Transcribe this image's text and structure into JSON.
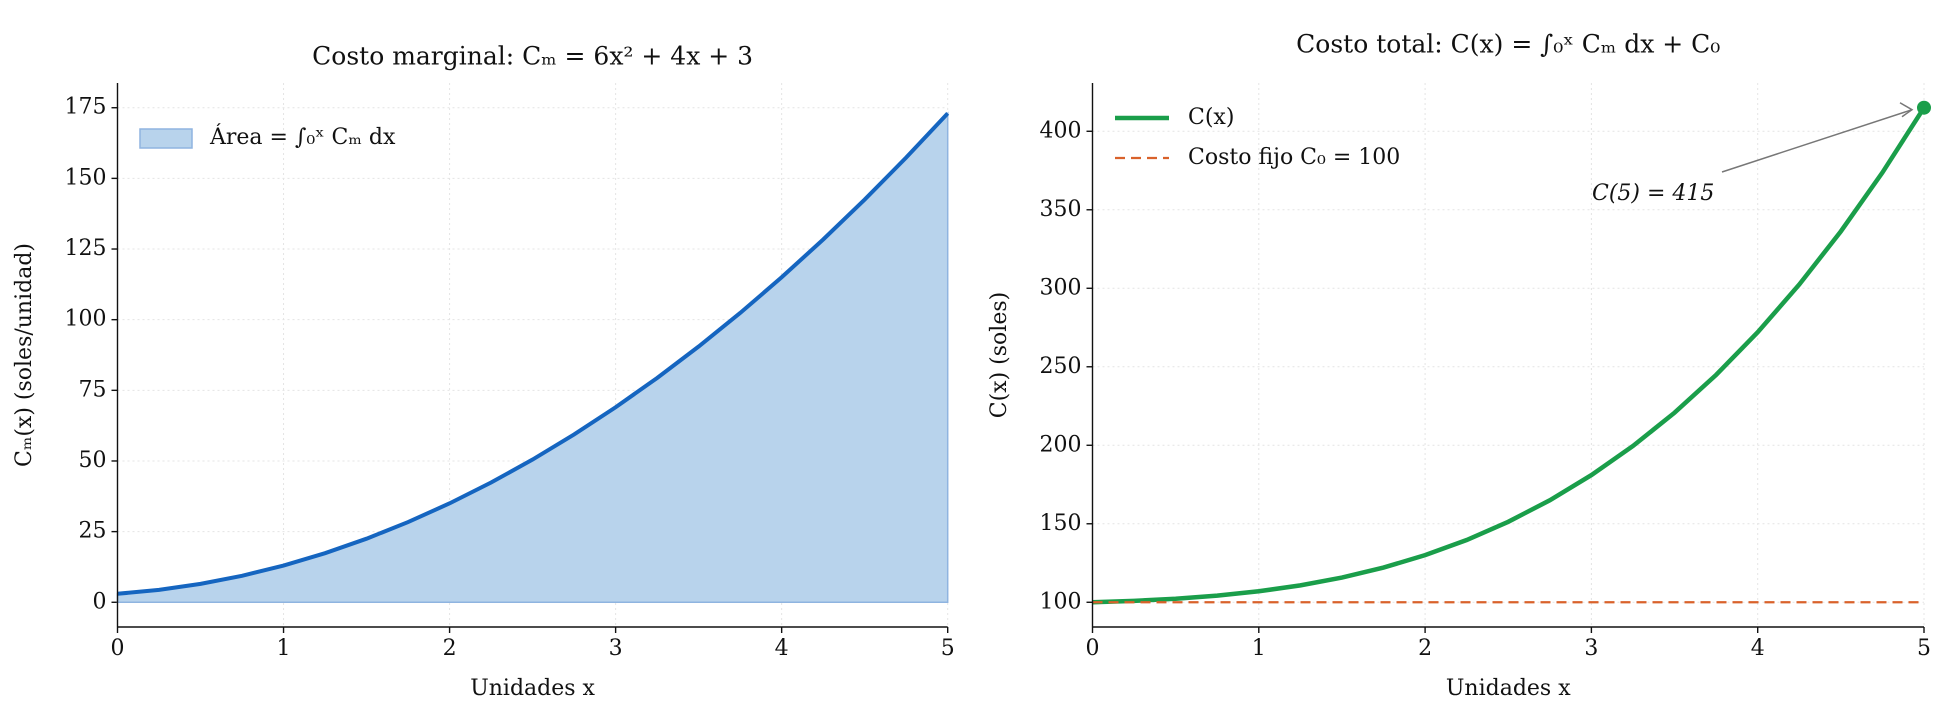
{
  "chart_data": [
    {
      "type": "area",
      "title": "Costo marginal: Cₘ = 6x² + 4x + 3",
      "xlabel": "Unidades x",
      "ylabel": "Cₘ(x) (soles/unidad)",
      "x": [
        0,
        0.25,
        0.5,
        0.75,
        1,
        1.25,
        1.5,
        1.75,
        2,
        2.25,
        2.5,
        2.75,
        3,
        3.25,
        3.5,
        3.75,
        4,
        4.25,
        4.5,
        4.75,
        5
      ],
      "values": [
        3,
        4.375,
        6.5,
        9.375,
        13,
        17.375,
        22.5,
        28.375,
        35,
        42.375,
        50.5,
        59.375,
        69,
        79.375,
        90.5,
        102.375,
        115,
        128.375,
        142.5,
        157.375,
        173
      ],
      "color": "#1565c0",
      "fill_color": "#b8d3ec",
      "legend_label": "Área = ∫₀ˣ Cₘ dx",
      "xlim": [
        0,
        5
      ],
      "xticks": [
        0,
        1,
        2,
        3,
        4,
        5
      ],
      "ylim": [
        -8.75,
        183.75
      ],
      "yticks": [
        0,
        25,
        50,
        75,
        100,
        125,
        150,
        175
      ],
      "grid": true,
      "legend": "upper left"
    },
    {
      "type": "line",
      "title": "Costo total: C(x) = ∫₀ˣ Cₘ dx + C₀",
      "xlabel": "Unidades x",
      "ylabel": "C(x) (soles)",
      "x": [
        0,
        0.25,
        0.5,
        0.75,
        1,
        1.25,
        1.5,
        1.75,
        2,
        2.25,
        2.5,
        2.75,
        3,
        3.25,
        3.5,
        3.75,
        4,
        4.25,
        4.5,
        4.75,
        5
      ],
      "series": [
        {
          "name": "C(x)",
          "color": "#1a9e4a",
          "dashed": false,
          "values": [
            100,
            100.90625,
            102.25,
            104.21875,
            107,
            110.78125,
            115.75,
            122.09375,
            130,
            139.65625,
            151.25,
            164.96875,
            181,
            199.53125,
            220.75,
            244.84375,
            272,
            302.40625,
            336.25,
            373.71875,
            415
          ]
        },
        {
          "name": "Costo fijo C₀ = 100",
          "color": "#d9622b",
          "dashed": true,
          "values": [
            100,
            100,
            100,
            100,
            100,
            100,
            100,
            100,
            100,
            100,
            100,
            100,
            100,
            100,
            100,
            100,
            100,
            100,
            100,
            100,
            100
          ]
        }
      ],
      "annotation": {
        "text": "C(5) = 415",
        "x": 5,
        "y": 415,
        "color": "#1a9e4a"
      },
      "xlim": [
        0,
        5
      ],
      "xticks": [
        0,
        1,
        2,
        3,
        4,
        5
      ],
      "ylim": [
        84.25,
        430.75
      ],
      "yticks": [
        100,
        150,
        200,
        250,
        300,
        350,
        400
      ],
      "grid": true,
      "legend": "upper left"
    }
  ]
}
